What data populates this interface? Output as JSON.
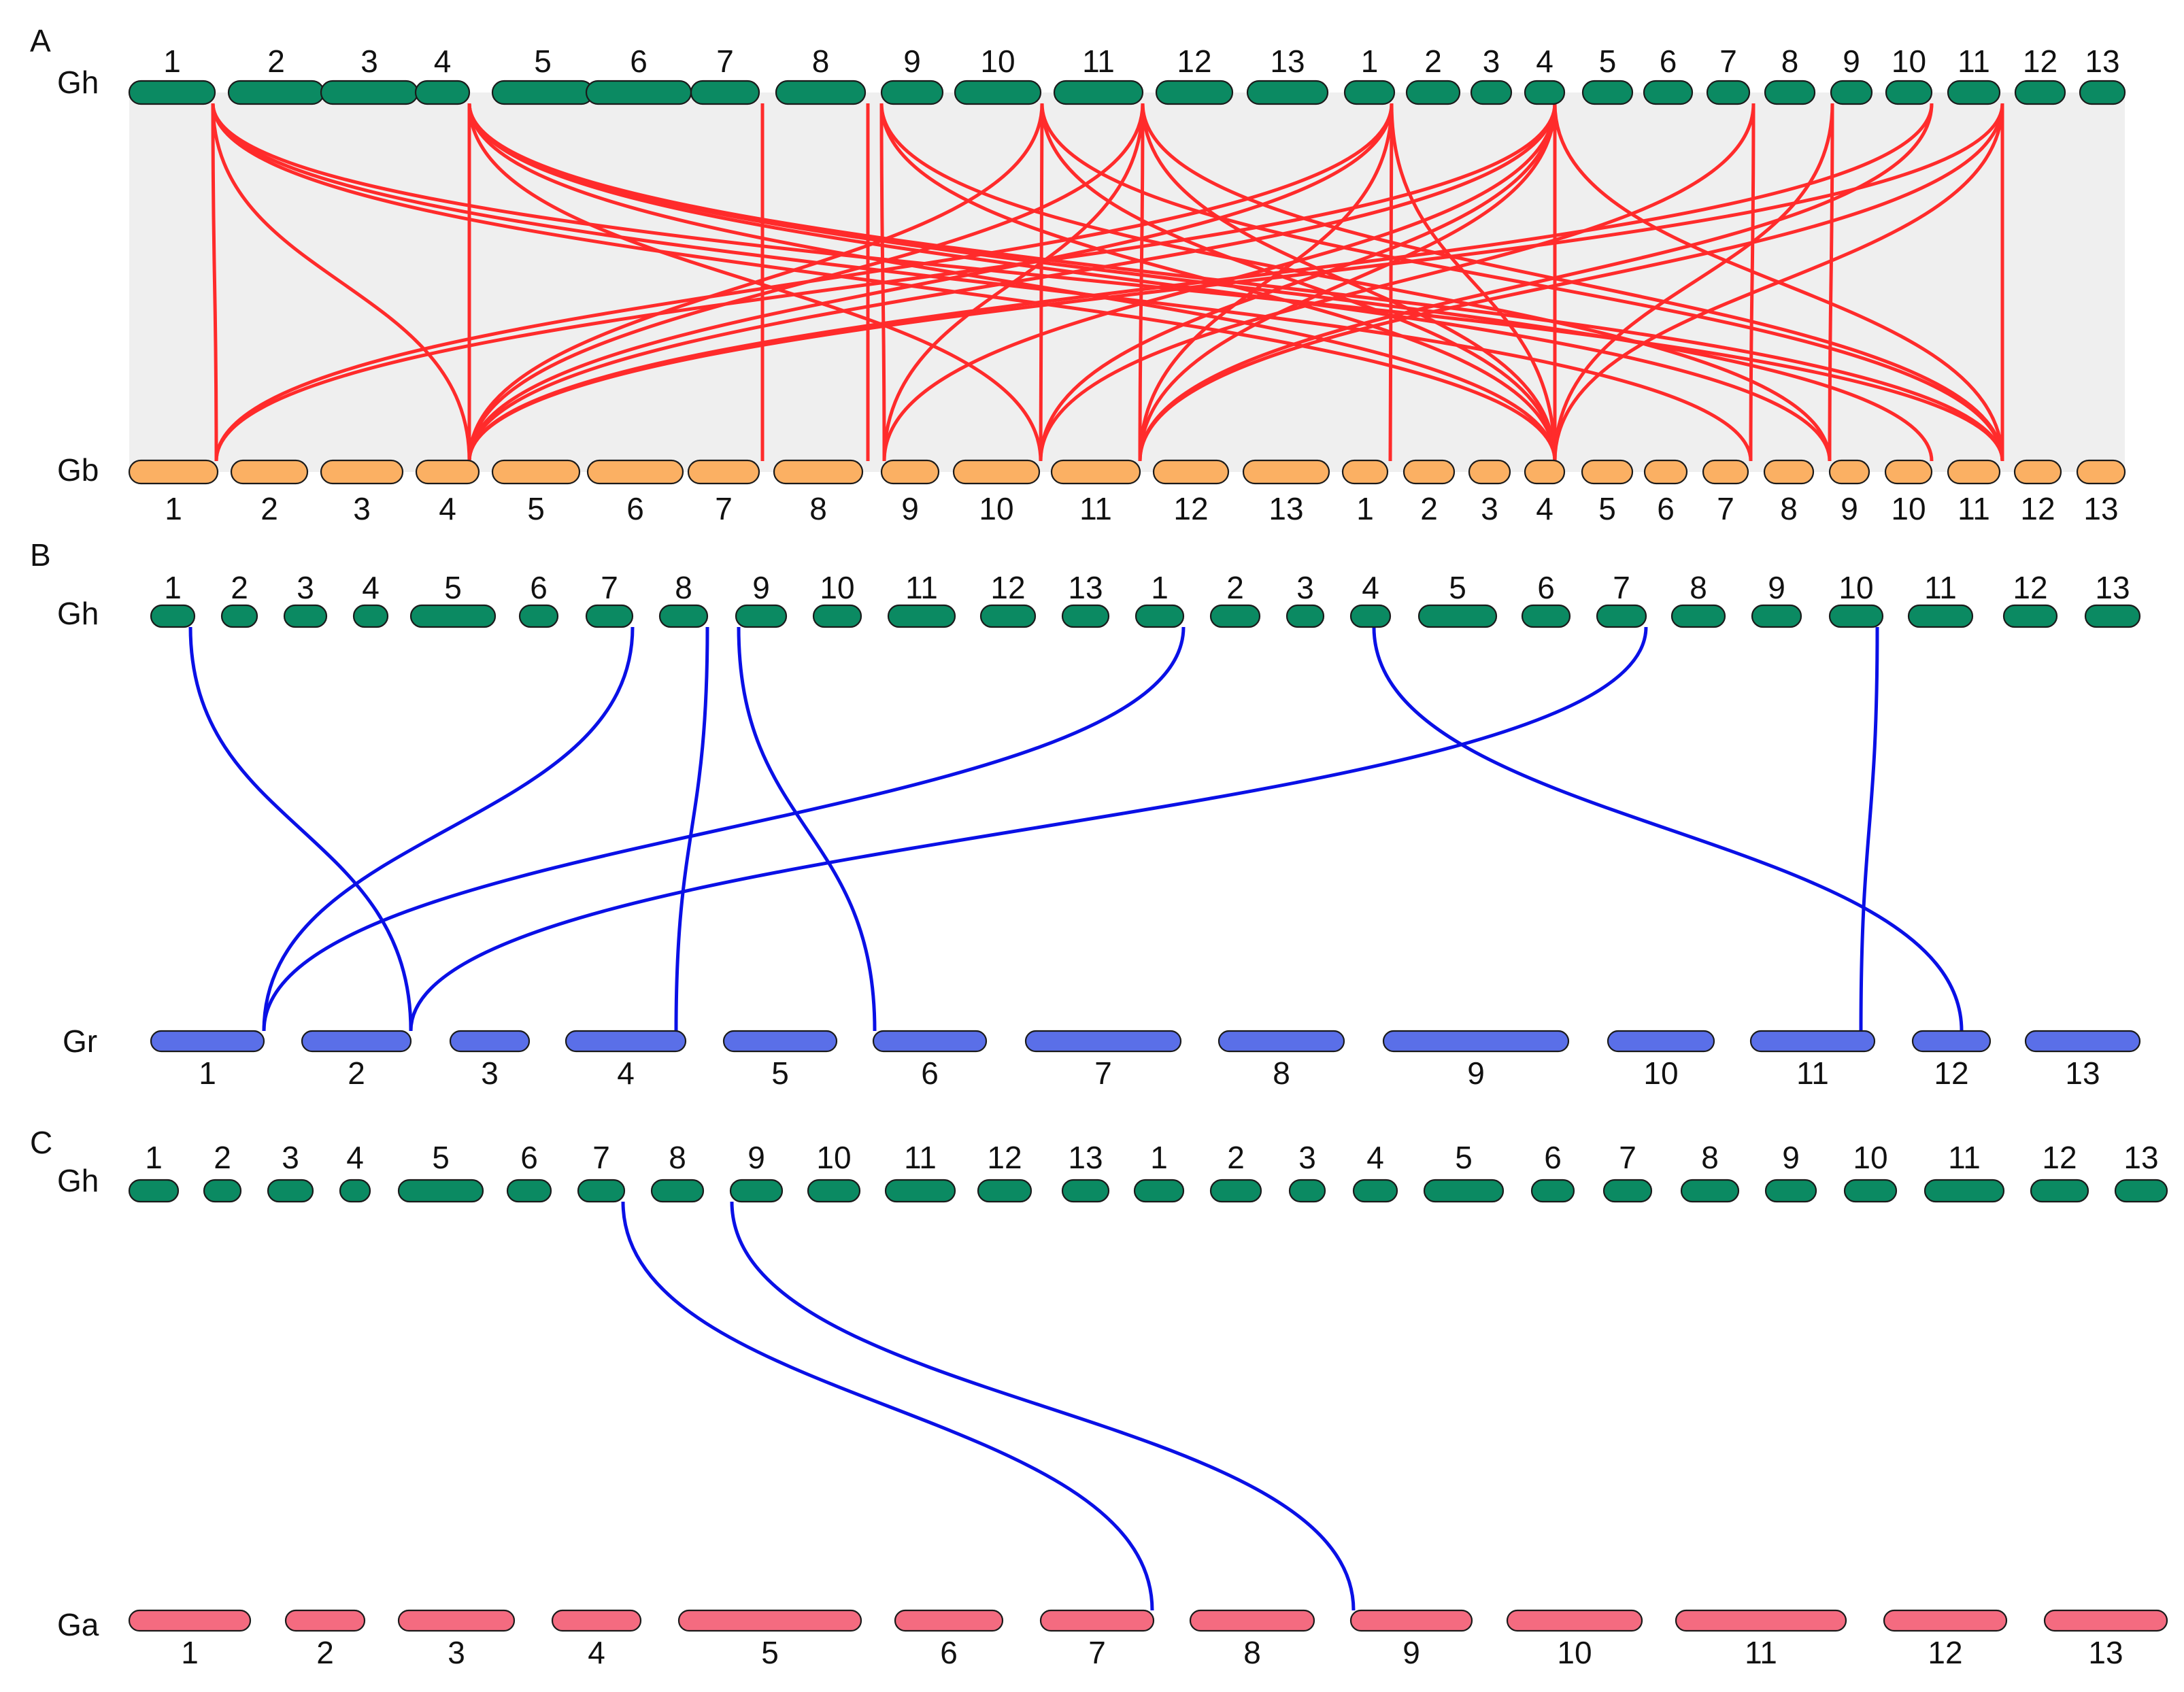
{
  "colors": {
    "Gh": "#0b8a62",
    "Gb": "#fbb063",
    "Gr": "#5a6fe8",
    "Ga": "#f46b80",
    "background_links": "#d3d3d3",
    "panel_A_fill": "#efefef",
    "highlight_A": "#ff2b2b",
    "highlight_BC": "#0a10e6"
  },
  "panels": [
    {
      "letter": "A",
      "top_species": "Gh",
      "bottom_species": "Gb",
      "top_chromosomes": [
        "1",
        "2",
        "3",
        "4",
        "5",
        "6",
        "7",
        "8",
        "9",
        "10",
        "11",
        "12",
        "13",
        "1",
        "2",
        "3",
        "4",
        "5",
        "6",
        "7",
        "8",
        "9",
        "10",
        "11",
        "12",
        "13"
      ],
      "bottom_chromosomes": [
        "1",
        "2",
        "3",
        "4",
        "5",
        "6",
        "7",
        "8",
        "9",
        "10",
        "11",
        "12",
        "13",
        "1",
        "2",
        "3",
        "4",
        "5",
        "6",
        "7",
        "8",
        "9",
        "10",
        "11",
        "12",
        "13"
      ],
      "highlight_color": "red"
    },
    {
      "letter": "B",
      "top_species": "Gh",
      "bottom_species": "Gr",
      "top_chromosomes": [
        "1",
        "2",
        "3",
        "4",
        "5",
        "6",
        "7",
        "8",
        "9",
        "10",
        "11",
        "12",
        "13",
        "1",
        "2",
        "3",
        "4",
        "5",
        "6",
        "7",
        "8",
        "9",
        "10",
        "11",
        "12",
        "13"
      ],
      "bottom_chromosomes": [
        "1",
        "2",
        "3",
        "4",
        "5",
        "6",
        "7",
        "8",
        "9",
        "10",
        "11",
        "12",
        "13"
      ],
      "highlight_color": "blue"
    },
    {
      "letter": "C",
      "top_species": "Gh",
      "bottom_species": "Ga",
      "top_chromosomes": [
        "1",
        "2",
        "3",
        "4",
        "5",
        "6",
        "7",
        "8",
        "9",
        "10",
        "11",
        "12",
        "13",
        "1",
        "2",
        "3",
        "4",
        "5",
        "6",
        "7",
        "8",
        "9",
        "10",
        "11",
        "12",
        "13"
      ],
      "bottom_chromosomes": [
        "1",
        "2",
        "3",
        "4",
        "5",
        "6",
        "7",
        "8",
        "9",
        "10",
        "11",
        "12",
        "13"
      ],
      "highlight_color": "blue"
    }
  ]
}
